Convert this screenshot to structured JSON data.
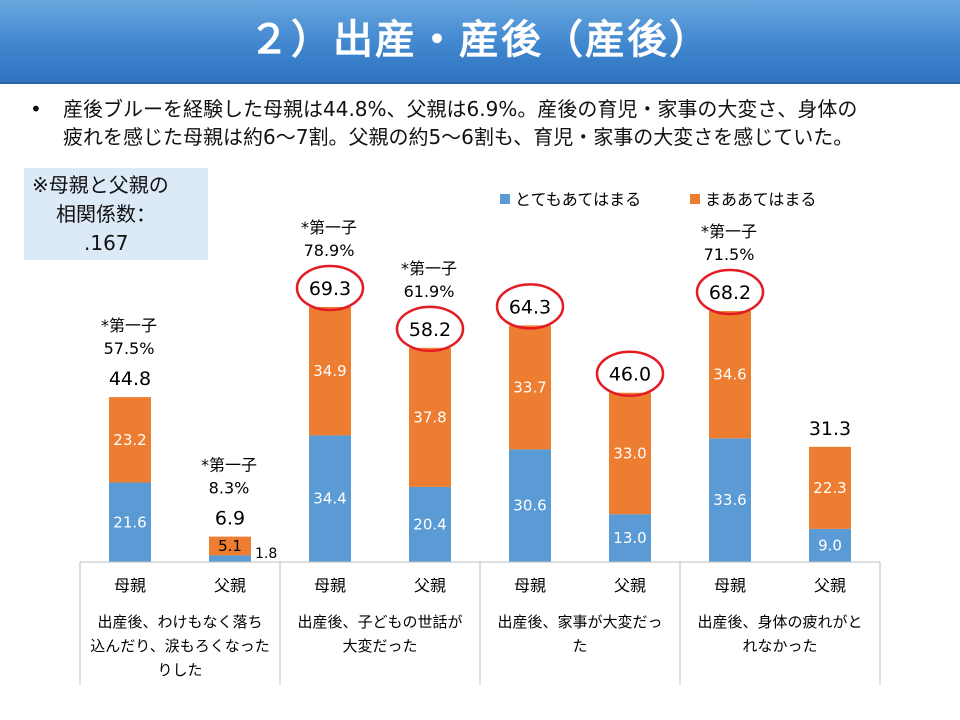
{
  "slide": {
    "title": "２）出産・産後（産後）",
    "bullet_marker": "•",
    "bullet_line1": "産後ブルーを経験した母親は44.8%、父親は6.9%。産後の育児・家事の大変さ、身体の",
    "bullet_line2": "疲れを感じた母親は約6〜7割。父親の約5〜6割も、育児・家事の大変さを感じていた。",
    "corr_line1": "※母親と父親の",
    "corr_line2": "相関係数：",
    "corr_value": ".167"
  },
  "colors": {
    "series1": "#5b9bd5",
    "series2": "#ed7d31",
    "highlight": "#e31b23",
    "grid": "#bfbfbf"
  },
  "chart_data": {
    "type": "bar",
    "stacked": true,
    "legend_position": "top-right",
    "ylim": [
      0,
      100
    ],
    "grid": false,
    "categories": [
      "母親",
      "父親",
      "母親",
      "父親",
      "母親",
      "父親",
      "母親",
      "父親"
    ],
    "series": [
      {
        "name": "とてもあてはまる",
        "values": [
          21.6,
          1.8,
          34.4,
          20.4,
          30.6,
          13.0,
          33.6,
          9.0
        ]
      },
      {
        "name": "まああてはまる",
        "values": [
          23.2,
          5.1,
          34.9,
          37.8,
          33.7,
          33.0,
          34.6,
          22.3
        ]
      }
    ],
    "totals": [
      "44.8",
      "6.9",
      "69.3",
      "58.2",
      "64.3",
      "46.0",
      "68.2",
      "31.3"
    ],
    "series1_labels": [
      "21.6",
      "1.8",
      "34.4",
      "20.4",
      "30.6",
      "13.0",
      "33.6",
      "9.0"
    ],
    "series2_labels": [
      "23.2",
      "5.1",
      "34.9",
      "37.8",
      "33.7",
      "33.0",
      "34.6",
      "22.3"
    ],
    "highlighted": [
      false,
      false,
      true,
      true,
      true,
      true,
      true,
      false
    ],
    "groups": [
      {
        "lines": [
          "出産後、わけもなく落ち",
          "込んだり、涙もろくなった",
          "りした"
        ]
      },
      {
        "lines": [
          "出産後、子どもの世話が",
          "大変だった"
        ]
      },
      {
        "lines": [
          "出産後、家事が大変だっ",
          "た"
        ]
      },
      {
        "lines": [
          "出産後、身体の疲れがと",
          "れなかった"
        ]
      }
    ],
    "annotations": [
      {
        "bar": 0,
        "line1": "*第一子",
        "line2": "57.5%"
      },
      {
        "bar": 1,
        "line1": "*第一子",
        "line2": "8.3%"
      },
      {
        "bar": 2,
        "line1": "*第一子",
        "line2": "78.9%"
      },
      {
        "bar": 3,
        "line1": "*第一子",
        "line2": "61.9%"
      },
      {
        "bar": 6,
        "line1": "*第一子",
        "line2": "71.5%"
      }
    ]
  }
}
